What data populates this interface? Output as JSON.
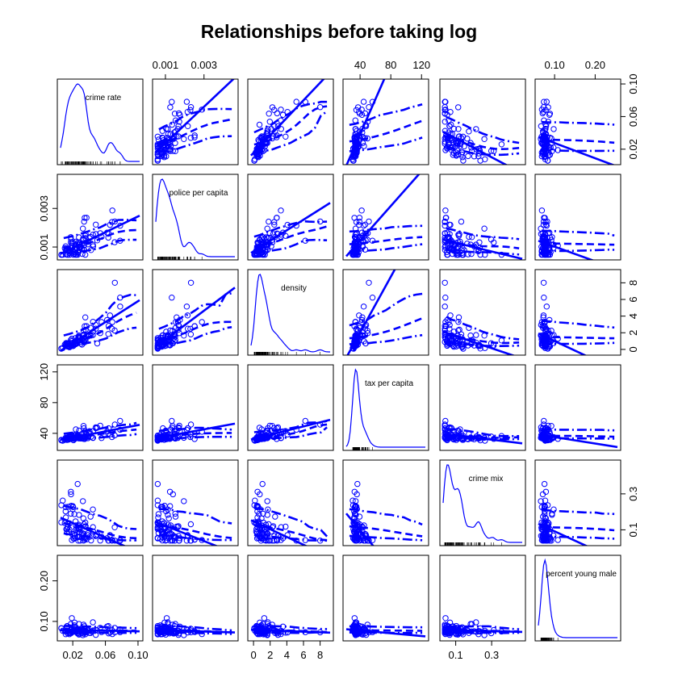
{
  "chart_data": {
    "type": "scatter",
    "title": "Relationships before taking log",
    "color": "#0000ff",
    "variables": [
      {
        "name": "crime rate",
        "range": [
          0.005,
          0.102
        ],
        "ticks": [
          0.02,
          0.06,
          0.1
        ],
        "tick_labels": [
          "0.02",
          "0.06",
          "0.10"
        ]
      },
      {
        "name": "police per capita",
        "range": [
          0.0005,
          0.0046
        ],
        "ticks": [
          0.001,
          0.003
        ],
        "tick_labels": [
          "0.001",
          "0.003"
        ]
      },
      {
        "name": "density",
        "range": [
          -0.3,
          9.2
        ],
        "ticks": [
          0,
          2,
          4,
          6,
          8
        ],
        "tick_labels": [
          "0",
          "2",
          "4",
          "6",
          "8"
        ]
      },
      {
        "name": "tax per capita",
        "range": [
          22,
          125
        ],
        "ticks": [
          40,
          80,
          120
        ],
        "tick_labels": [
          "40",
          "80",
          "120"
        ]
      },
      {
        "name": "crime mix",
        "range": [
          0.03,
          0.47
        ],
        "ticks": [
          0.1,
          0.3
        ],
        "tick_labels": [
          "0.1",
          "0.3"
        ]
      },
      {
        "name": "percent young male",
        "range": [
          0.06,
          0.255
        ],
        "ticks": [
          0.1,
          0.2
        ],
        "tick_labels": [
          "0.10",
          "0.20"
        ]
      }
    ],
    "panels": "scatterplot matrix with density curves and rug on the diagonal; scatter points with linear fit (solid) and smoother with spread (dashed / dash-dot) off-diagonal",
    "axes_layout": {
      "bottom": [
        0,
        2,
        4
      ],
      "top": [
        1,
        3,
        5
      ],
      "right": [
        0,
        2,
        4
      ],
      "left": [
        1,
        3,
        5
      ]
    }
  }
}
